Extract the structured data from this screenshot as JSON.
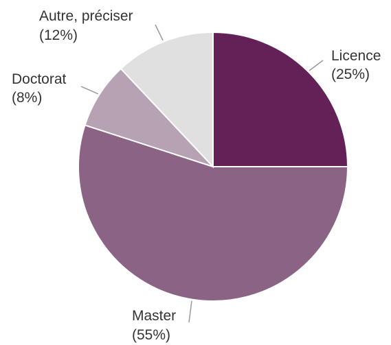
{
  "chart_data": {
    "type": "pie",
    "title": "",
    "start_angle_deg": 0,
    "direction": "clockwise",
    "slices": [
      {
        "label": "Licence",
        "value": 25,
        "pct_label": "(25%)",
        "color": "#642157"
      },
      {
        "label": "Master",
        "value": 55,
        "pct_label": "(55%)",
        "color": "#8b6385"
      },
      {
        "label": "Doctorat",
        "value": 8,
        "pct_label": "(8%)",
        "color": "#b7a2b3"
      },
      {
        "label": "Autre, préciser",
        "value": 12,
        "pct_label": "(12%)",
        "color": "#e0e0e0"
      }
    ],
    "legend": "none"
  }
}
